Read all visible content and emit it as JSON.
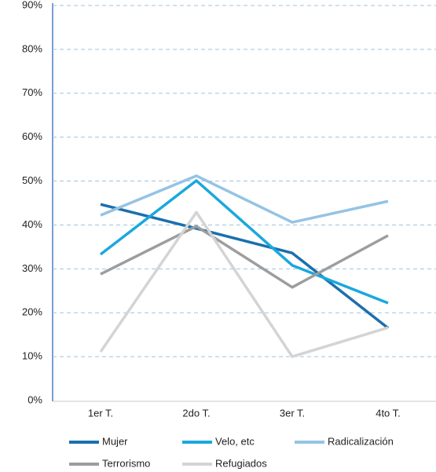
{
  "chart_data": {
    "type": "line",
    "categories": [
      "1er T.",
      "2do T.",
      "3er T.",
      "4to T."
    ],
    "series": [
      {
        "name": "Mujer",
        "color": "#1b6fae",
        "values": [
          44.7,
          39.2,
          33.6,
          16.5
        ]
      },
      {
        "name": "Velo, etc",
        "color": "#1aa8dd",
        "values": [
          33.3,
          50.1,
          30.8,
          22.2
        ]
      },
      {
        "name": "Radicalización",
        "color": "#95c3e4",
        "values": [
          42.2,
          51.2,
          40.6,
          45.4
        ]
      },
      {
        "name": "Terrorismo",
        "color": "#9d9d9d",
        "values": [
          28.8,
          39.7,
          25.8,
          37.6
        ]
      },
      {
        "name": "Refugiados",
        "color": "#d4d4d4",
        "values": [
          11.1,
          42.9,
          10.0,
          16.6
        ]
      }
    ],
    "ylim": [
      0,
      90
    ],
    "yticks": [
      {
        "value": 0,
        "label": "0%"
      },
      {
        "value": 10,
        "label": "10%"
      },
      {
        "value": 20,
        "label": "20%"
      },
      {
        "value": 30,
        "label": "30%"
      },
      {
        "value": 40,
        "label": "40%"
      },
      {
        "value": 50,
        "label": "50%"
      },
      {
        "value": 60,
        "label": "60%"
      },
      {
        "value": 70,
        "label": "70%"
      },
      {
        "value": 80,
        "label": "80%"
      },
      {
        "value": 90,
        "label": "90%"
      }
    ],
    "grid": true,
    "legend": "bottom"
  }
}
